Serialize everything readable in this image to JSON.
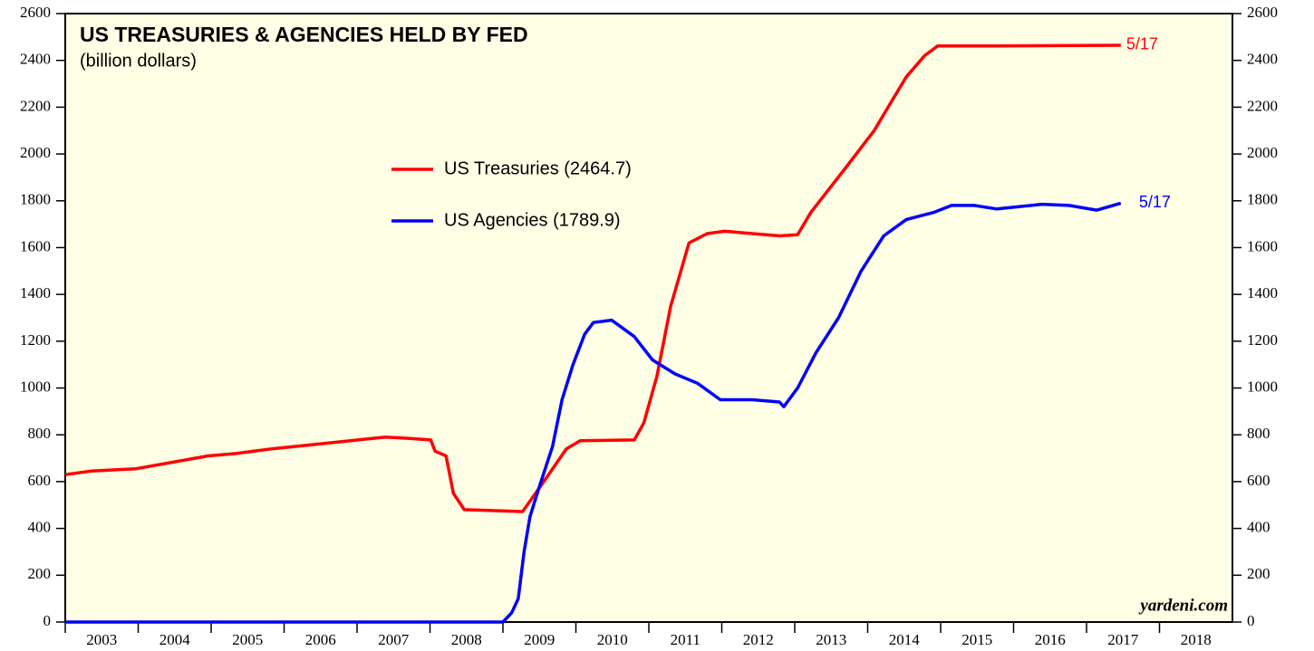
{
  "chart_data": {
    "type": "line",
    "title": "US TREASURIES & AGENCIES HELD BY FED",
    "subtitle": "(billion dollars)",
    "watermark": "yardeni.com",
    "xlim": [
      2003,
      2019
    ],
    "xticks": [
      2003,
      2004,
      2005,
      2006,
      2007,
      2008,
      2009,
      2010,
      2011,
      2012,
      2013,
      2014,
      2015,
      2016,
      2017,
      2018
    ],
    "ylim": [
      0,
      2600
    ],
    "yticks": [
      0,
      200,
      400,
      600,
      800,
      1000,
      1200,
      1400,
      1600,
      1800,
      2000,
      2200,
      2400,
      2600
    ],
    "y2lim": [
      0,
      2600
    ],
    "y2ticks": [
      0,
      200,
      400,
      600,
      800,
      1000,
      1200,
      1400,
      1600,
      1800,
      2000,
      2200,
      2400,
      2600
    ],
    "series": [
      {
        "name": "US Treasuries (2464.7)",
        "color": "#ff0000",
        "end_label": "5/17",
        "x": [
          2003.0,
          2003.35,
          2003.97,
          2004.96,
          2005.34,
          2005.83,
          2006.45,
          2007.07,
          2007.39,
          2007.7,
          2008.01,
          2008.07,
          2008.22,
          2008.32,
          2008.47,
          2008.81,
          2009.27,
          2009.56,
          2009.87,
          2010.06,
          2010.8,
          2010.93,
          2011.11,
          2011.3,
          2011.55,
          2011.8,
          2012.04,
          2012.42,
          2012.79,
          2013.04,
          2013.22,
          2013.72,
          2014.09,
          2014.28,
          2014.53,
          2014.78,
          2014.96,
          2015.77,
          2017.47
        ],
        "values": [
          630,
          645,
          655,
          710,
          720,
          740,
          760,
          780,
          790,
          785,
          778,
          730,
          710,
          550,
          480,
          477,
          472,
          600,
          740,
          775,
          778,
          850,
          1050,
          1350,
          1620,
          1660,
          1670,
          1660,
          1650,
          1655,
          1750,
          1950,
          2100,
          2200,
          2330,
          2420,
          2462,
          2462,
          2464.7
        ]
      },
      {
        "name": "US Agencies (1789.9)",
        "color": "#0000ff",
        "end_label": "5/17",
        "x": [
          2003.0,
          2009.0,
          2009.12,
          2009.21,
          2009.29,
          2009.37,
          2009.5,
          2009.68,
          2009.81,
          2009.96,
          2010.12,
          2010.24,
          2010.49,
          2010.8,
          2011.05,
          2011.36,
          2011.67,
          2011.98,
          2012.42,
          2012.79,
          2012.85,
          2013.04,
          2013.29,
          2013.6,
          2013.91,
          2014.22,
          2014.53,
          2014.9,
          2015.15,
          2015.46,
          2015.77,
          2016.39,
          2016.76,
          2017.14,
          2017.47
        ],
        "values": [
          0,
          0,
          40,
          100,
          300,
          450,
          580,
          750,
          950,
          1100,
          1230,
          1280,
          1290,
          1220,
          1120,
          1060,
          1020,
          950,
          950,
          940,
          920,
          1000,
          1150,
          1300,
          1500,
          1650,
          1720,
          1750,
          1780,
          1780,
          1765,
          1785,
          1780,
          1760,
          1789.9
        ]
      }
    ]
  }
}
